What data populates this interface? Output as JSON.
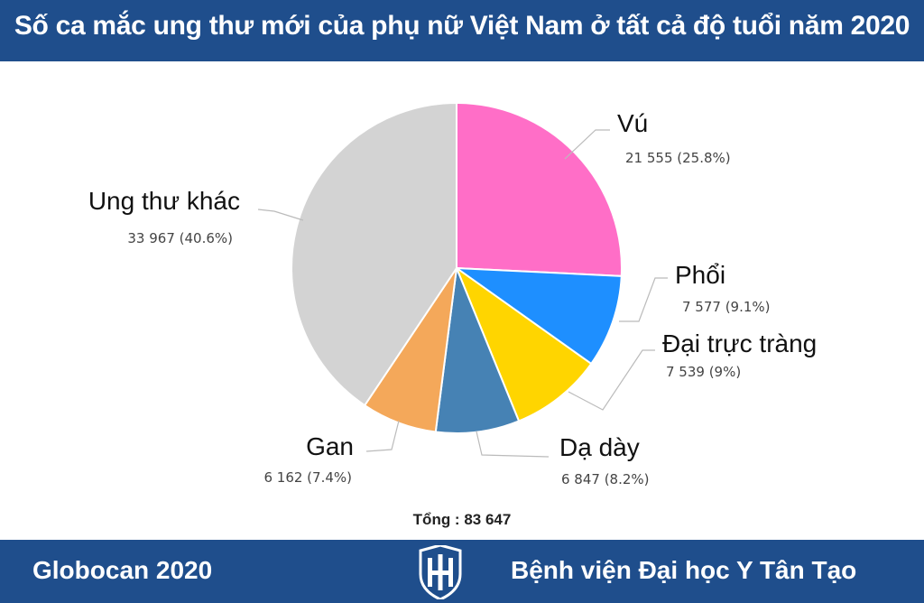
{
  "header": {
    "title": "Số ca mắc ung thư mới của phụ nữ Việt Nam ở tất cả độ tuổi năm 2020"
  },
  "total": {
    "text": "Tổng : 83 647"
  },
  "footer": {
    "source": "Globocan 2020",
    "hospital": "Bệnh viện Đại học Y  Tân Tạo",
    "logo_icon": "hospital-logo-icon"
  },
  "colors": {
    "bar": "#1f4e8c",
    "white": "#ffffff"
  },
  "chart_data": {
    "type": "pie",
    "title": "",
    "total": 83647,
    "slices": [
      {
        "label": "Vú",
        "value": 21555,
        "percent": 25.8,
        "value_text": "21 555 (25.8%)",
        "color": "#ff6ec7"
      },
      {
        "label": "Phổi",
        "value": 7577,
        "percent": 9.1,
        "value_text": "7 577 (9.1%)",
        "color": "#1e8fff"
      },
      {
        "label": "Đại trực tràng",
        "value": 7539,
        "percent": 9.0,
        "value_text": "7 539 (9%)",
        "color": "#ffd500"
      },
      {
        "label": "Dạ dày",
        "value": 6847,
        "percent": 8.2,
        "value_text": "6 847 (8.2%)",
        "color": "#4682b4"
      },
      {
        "label": "Gan",
        "value": 6162,
        "percent": 7.4,
        "value_text": "6 162 (7.4%)",
        "color": "#f4a85a"
      },
      {
        "label": "Ung thư khác",
        "value": 33967,
        "percent": 40.6,
        "value_text": "33 967 (40.6%)",
        "color": "#d3d3d3"
      }
    ],
    "legend": "none"
  }
}
